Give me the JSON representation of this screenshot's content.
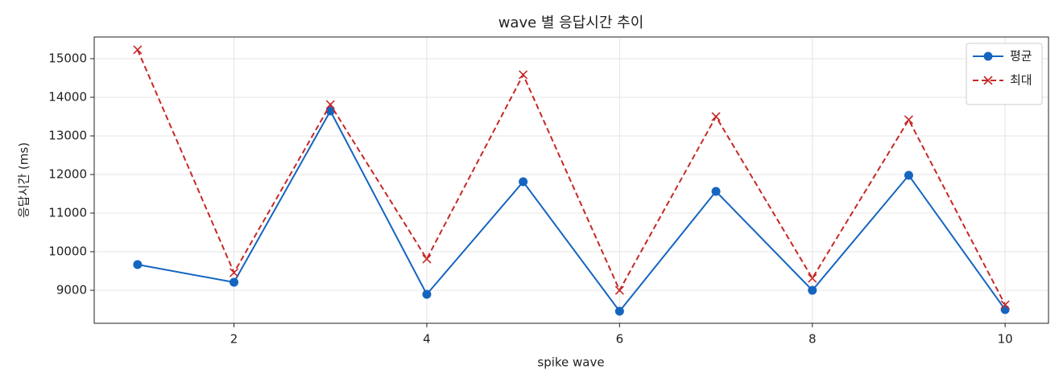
{
  "chart_data": {
    "type": "line",
    "title": "wave 별 응답시간 추이",
    "xlabel": "spike wave",
    "ylabel": "응답시간 (ms)",
    "x": [
      1,
      2,
      3,
      4,
      5,
      6,
      7,
      8,
      9,
      10
    ],
    "series": [
      {
        "name": "평균",
        "color": "#1565c0",
        "marker": "o",
        "linestyle": "solid",
        "values": [
          9667,
          9208,
          13646,
          8896,
          11812,
          8458,
          11562,
          9000,
          11979,
          8500
        ]
      },
      {
        "name": "최대",
        "color": "#c62828",
        "marker": "x",
        "linestyle": "dashed",
        "values": [
          15229,
          9458,
          13812,
          9812,
          14583,
          9000,
          13500,
          9312,
          13417,
          8625
        ]
      }
    ],
    "xlim": [
      0.55,
      10.45
    ],
    "xticks": [
      2,
      4,
      6,
      8,
      10
    ],
    "ylim": [
      8146,
      15562
    ],
    "yticks": [
      9000,
      10000,
      11000,
      12000,
      13000,
      14000,
      15000
    ],
    "grid": true,
    "legend": "upper right"
  }
}
